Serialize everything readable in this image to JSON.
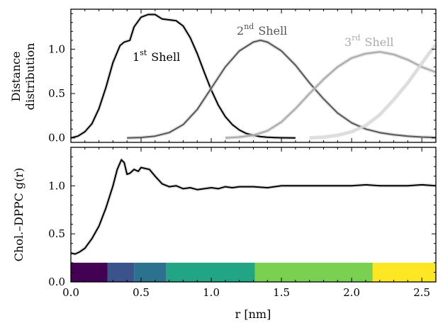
{
  "chart_data": [
    {
      "type": "line",
      "ylabel_line1": "Distance",
      "ylabel_line2": "distribution",
      "xlim": [
        0,
        2.6
      ],
      "ylim": [
        -0.05,
        1.45
      ],
      "yticks": [
        0.0,
        0.5,
        1.0
      ],
      "ytick_labels": [
        "0.0",
        "0.5",
        "1.0"
      ],
      "xticks": [
        0.0,
        0.5,
        1.0,
        1.5,
        2.0,
        2.5
      ],
      "grid": false,
      "legend": "none",
      "annotations": [
        {
          "base": "1",
          "sup": "st",
          "rest": "Shell",
          "color": "#000000"
        },
        {
          "base": "2",
          "sup": "nd",
          "rest": "Shell",
          "color": "#555555"
        },
        {
          "base": "3",
          "sup": "rd",
          "rest": "Shell",
          "color": "#aaaaaa"
        }
      ],
      "series": [
        {
          "color": "#000000",
          "x": [
            0.0,
            0.05,
            0.1,
            0.15,
            0.2,
            0.25,
            0.3,
            0.35,
            0.38,
            0.42,
            0.45,
            0.5,
            0.55,
            0.6,
            0.65,
            0.7,
            0.75,
            0.8,
            0.85,
            0.9,
            0.95,
            1.0,
            1.05,
            1.1,
            1.15,
            1.2,
            1.25,
            1.3,
            1.35,
            1.4,
            1.45,
            1.5,
            1.6
          ],
          "y": [
            0.0,
            0.02,
            0.07,
            0.16,
            0.33,
            0.57,
            0.85,
            1.04,
            1.08,
            1.1,
            1.25,
            1.36,
            1.39,
            1.39,
            1.34,
            1.33,
            1.32,
            1.26,
            1.13,
            0.95,
            0.74,
            0.54,
            0.37,
            0.24,
            0.15,
            0.09,
            0.05,
            0.03,
            0.015,
            0.008,
            0.004,
            0.002,
            0.0
          ]
        },
        {
          "color": "#555555",
          "x": [
            0.4,
            0.5,
            0.6,
            0.7,
            0.8,
            0.9,
            1.0,
            1.1,
            1.2,
            1.3,
            1.35,
            1.4,
            1.5,
            1.6,
            1.7,
            1.8,
            1.9,
            2.0,
            2.1,
            2.2,
            2.3,
            2.4,
            2.5,
            2.6
          ],
          "y": [
            0.0,
            0.005,
            0.02,
            0.06,
            0.15,
            0.32,
            0.56,
            0.8,
            0.98,
            1.08,
            1.1,
            1.08,
            0.98,
            0.82,
            0.62,
            0.44,
            0.28,
            0.17,
            0.1,
            0.06,
            0.035,
            0.02,
            0.01,
            0.005
          ]
        },
        {
          "color": "#aaaaaa",
          "x": [
            1.1,
            1.2,
            1.3,
            1.4,
            1.5,
            1.6,
            1.7,
            1.8,
            1.9,
            2.0,
            2.1,
            2.2,
            2.3,
            2.4,
            2.5,
            2.6
          ],
          "y": [
            0.0,
            0.01,
            0.03,
            0.08,
            0.18,
            0.33,
            0.5,
            0.66,
            0.8,
            0.9,
            0.95,
            0.97,
            0.94,
            0.88,
            0.8,
            0.74
          ]
        },
        {
          "color": "#dddddd",
          "x": [
            1.7,
            1.8,
            1.9,
            2.0,
            2.1,
            2.2,
            2.3,
            2.4,
            2.5,
            2.55,
            2.6
          ],
          "y": [
            0.0,
            0.01,
            0.03,
            0.07,
            0.14,
            0.26,
            0.43,
            0.62,
            0.84,
            0.95,
            1.05
          ]
        }
      ]
    },
    {
      "type": "line",
      "ylabel": "Chol.–DPPC g(r)",
      "xlabel": "r [nm]",
      "xlim": [
        0,
        2.6
      ],
      "ylim": [
        0,
        1.4
      ],
      "yticks": [
        0.0,
        0.5,
        1.0
      ],
      "ytick_labels": [
        "0.0",
        "0.5",
        "1.0"
      ],
      "xticks": [
        0.0,
        0.5,
        1.0,
        1.5,
        2.0,
        2.5
      ],
      "xtick_labels": [
        "0.0",
        "0.5",
        "1.0",
        "1.5",
        "2.0",
        "2.5"
      ],
      "grid": false,
      "legend": "none",
      "series": [
        {
          "color": "#000000",
          "x": [
            0.0,
            0.03,
            0.06,
            0.1,
            0.15,
            0.2,
            0.25,
            0.3,
            0.33,
            0.36,
            0.38,
            0.4,
            0.42,
            0.45,
            0.48,
            0.5,
            0.53,
            0.56,
            0.6,
            0.65,
            0.7,
            0.75,
            0.8,
            0.85,
            0.9,
            0.95,
            1.0,
            1.05,
            1.1,
            1.15,
            1.2,
            1.3,
            1.4,
            1.5,
            1.6,
            1.7,
            1.8,
            1.9,
            2.0,
            2.1,
            2.2,
            2.3,
            2.4,
            2.5,
            2.6
          ],
          "y": [
            0.3,
            0.29,
            0.31,
            0.35,
            0.45,
            0.58,
            0.77,
            1.0,
            1.17,
            1.27,
            1.24,
            1.12,
            1.13,
            1.17,
            1.15,
            1.19,
            1.18,
            1.17,
            1.1,
            1.02,
            0.99,
            1.0,
            0.97,
            0.98,
            0.96,
            0.97,
            0.98,
            0.97,
            0.99,
            0.98,
            0.99,
            0.99,
            0.98,
            1.0,
            1.0,
            1.0,
            1.0,
            1.0,
            1.0,
            1.01,
            1.0,
            1.0,
            1.0,
            1.01,
            1.0
          ]
        }
      ],
      "shell_bands": [
        {
          "x0": 0.0,
          "x1": 0.26,
          "color": "#440154"
        },
        {
          "x0": 0.26,
          "x1": 0.45,
          "color": "#3b528b"
        },
        {
          "x0": 0.45,
          "x1": 0.68,
          "color": "#2c728e"
        },
        {
          "x0": 0.68,
          "x1": 1.31,
          "color": "#21a585"
        },
        {
          "x0": 1.31,
          "x1": 2.15,
          "color": "#7ad151"
        },
        {
          "x0": 2.15,
          "x1": 2.6,
          "color": "#fde725"
        }
      ],
      "band_height": 0.2
    }
  ]
}
